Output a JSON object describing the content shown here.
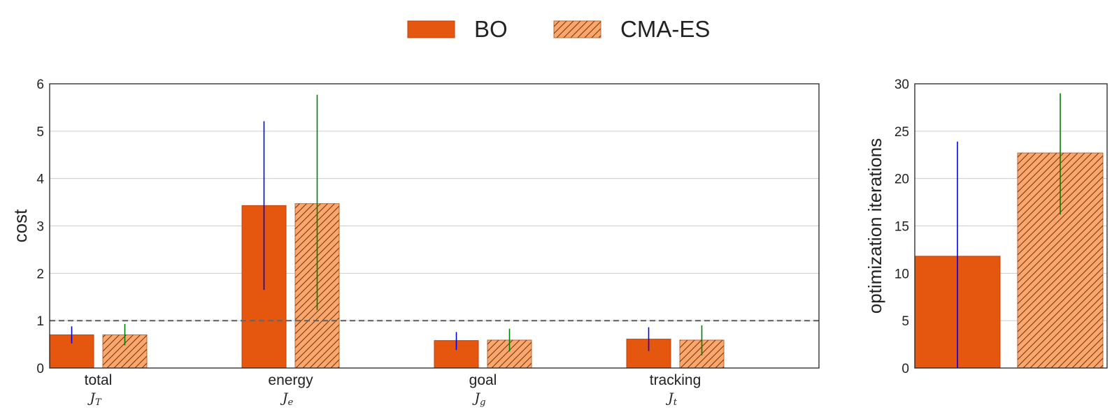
{
  "legend": {
    "position": "top-center",
    "entries": [
      {
        "name": "BO",
        "style": "solid"
      },
      {
        "name": "CMA-ES",
        "style": "hatched"
      }
    ]
  },
  "colors": {
    "bo_fill": "#e5560f",
    "bo_edge": "#b84410",
    "cma_fill": "#fda66b",
    "cma_edge": "#b86a3a",
    "cma_hatch": "#5a3a22",
    "bo_error": "#0000ee",
    "cma_error": "#008000",
    "grid": "#cccccc",
    "reference_line": "#666666"
  },
  "chart_data": [
    {
      "type": "bar",
      "ylabel": "cost",
      "ylim": [
        0,
        6
      ],
      "yticks": [
        0,
        1,
        2,
        3,
        4,
        5,
        6
      ],
      "grid": true,
      "categories": [
        "total",
        "energy",
        "goal",
        "tracking"
      ],
      "category_math": [
        {
          "base": "J",
          "sub": "T"
        },
        {
          "base": "J",
          "sub": "e"
        },
        {
          "base": "J",
          "sub": "g"
        },
        {
          "base": "J",
          "sub": "t"
        }
      ],
      "reference_line": {
        "y": 1,
        "style": "dashed"
      },
      "series": [
        {
          "name": "BO",
          "values": [
            0.7,
            3.43,
            0.58,
            0.61
          ],
          "error_low": [
            0.52,
            1.65,
            0.38,
            0.36
          ],
          "error_high": [
            0.88,
            5.21,
            0.76,
            0.86
          ]
        },
        {
          "name": "CMA-ES",
          "values": [
            0.7,
            3.47,
            0.59,
            0.59
          ],
          "error_low": [
            0.48,
            1.22,
            0.35,
            0.27
          ],
          "error_high": [
            0.93,
            5.77,
            0.83,
            0.9
          ]
        }
      ]
    },
    {
      "type": "bar",
      "ylabel": "optimization iterations",
      "ylim": [
        0,
        30
      ],
      "yticks": [
        0,
        5,
        10,
        15,
        20,
        25,
        30
      ],
      "grid": true,
      "series": [
        {
          "name": "BO",
          "value": 11.8,
          "error_low": 0,
          "error_high": 23.9
        },
        {
          "name": "CMA-ES",
          "value": 22.7,
          "error_low": 16.2,
          "error_high": 29.0
        }
      ]
    }
  ]
}
